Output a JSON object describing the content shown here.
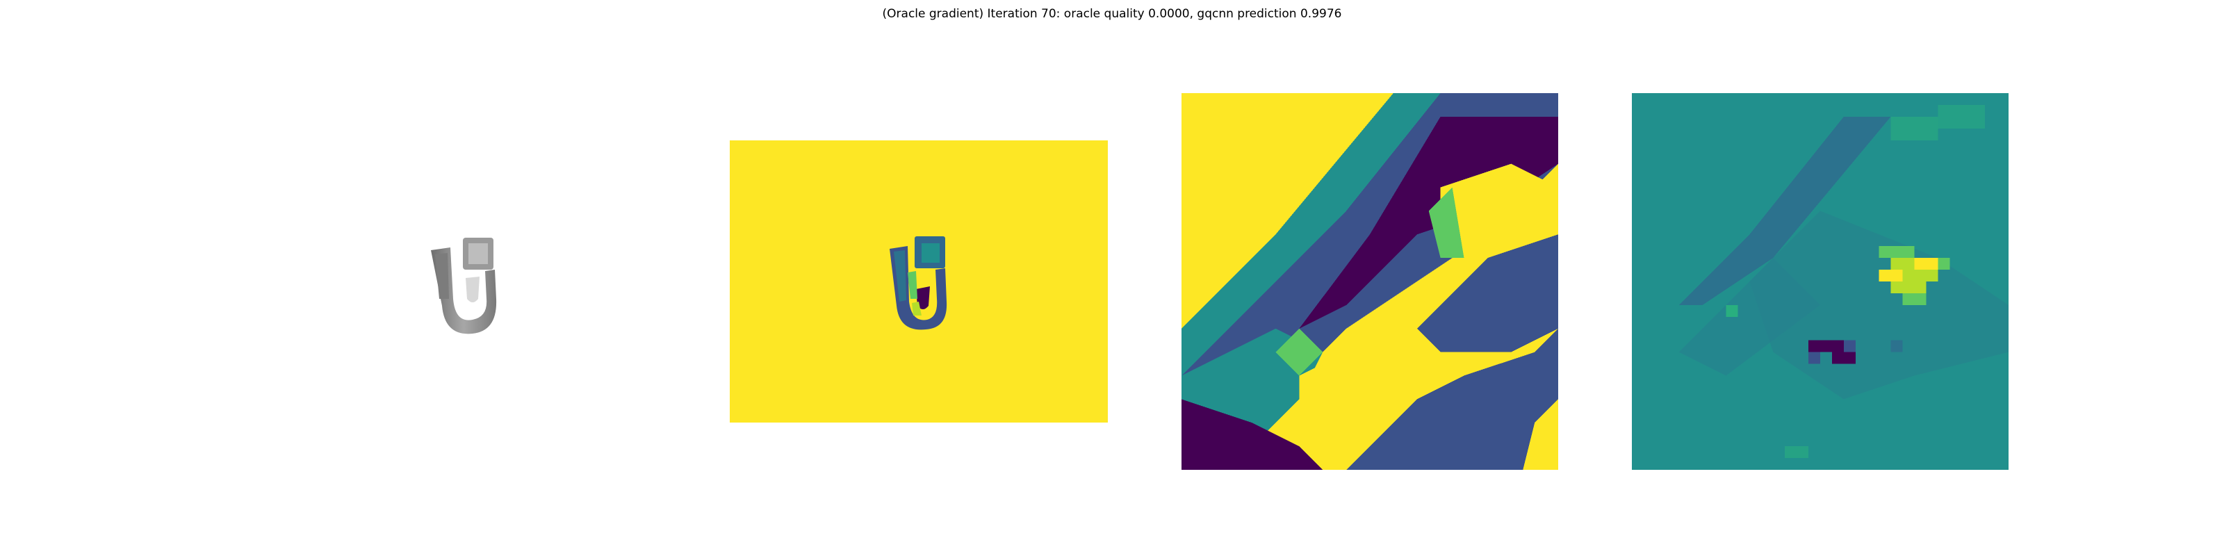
{
  "figure": {
    "title": "(Oracle gradient) Iteration 70: oracle quality 0.0000, gqcnn prediction 0.9976"
  },
  "panels": [
    {
      "id": "rendered-object",
      "kind": "grayscale-render"
    },
    {
      "id": "depth-image",
      "kind": "viridis-depth"
    },
    {
      "id": "depth-crop",
      "kind": "viridis-depth-zoom"
    },
    {
      "id": "gradient-map",
      "kind": "viridis-gradient"
    }
  ],
  "colors": {
    "background": "#ffffff",
    "viridis_yellow": "#fde725",
    "viridis_purple": "#440154",
    "viridis_indigo": "#3b528b",
    "viridis_teal": "#21908d",
    "viridis_green": "#5ec962",
    "object_gray": "#8c8c8c"
  }
}
